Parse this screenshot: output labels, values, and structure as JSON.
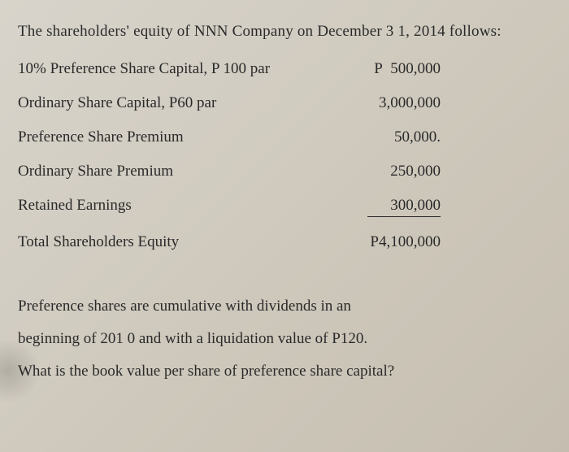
{
  "heading": "The shareholders' equity of NNN Company on December 3 1, 2014 follows:",
  "equity": {
    "rows": [
      {
        "label": "10% Preference Share Capital, P 100 par",
        "prefix": "P",
        "value": "500,000",
        "underline": false
      },
      {
        "label": "Ordinary Share Capital, P60 par",
        "prefix": "",
        "value": "3,000,000",
        "underline": false
      },
      {
        "label": "Preference Share Premium",
        "prefix": "",
        "value": "50,000.",
        "underline": false
      },
      {
        "label": "Ordinary Share Premium",
        "prefix": "",
        "value": "250,000",
        "underline": false
      },
      {
        "label": "Retained Earnings",
        "prefix": "",
        "value": "300,000",
        "underline": true
      },
      {
        "label": "Total Shareholders Equity",
        "prefix": "",
        "value": "P4,100,000",
        "underline": false
      }
    ]
  },
  "footer": {
    "line1": "Preference shares are cumulative with dividends in an",
    "line2": "beginning of 201 0 and with a liquidation value of P120.",
    "line3": "What is the book value per share of preference share capital?"
  },
  "styling": {
    "background_gradient": [
      "#d8d4cb",
      "#cfc9bd",
      "#c5beb0"
    ],
    "text_color": "#2a2a2a",
    "font_family": "Georgia, Times New Roman, serif",
    "base_fontsize": 19,
    "label_column_width": 380,
    "value_column_width": 150,
    "row_spacing": 20,
    "underline_color": "#2a2a2a",
    "underline_width": 1.5
  }
}
